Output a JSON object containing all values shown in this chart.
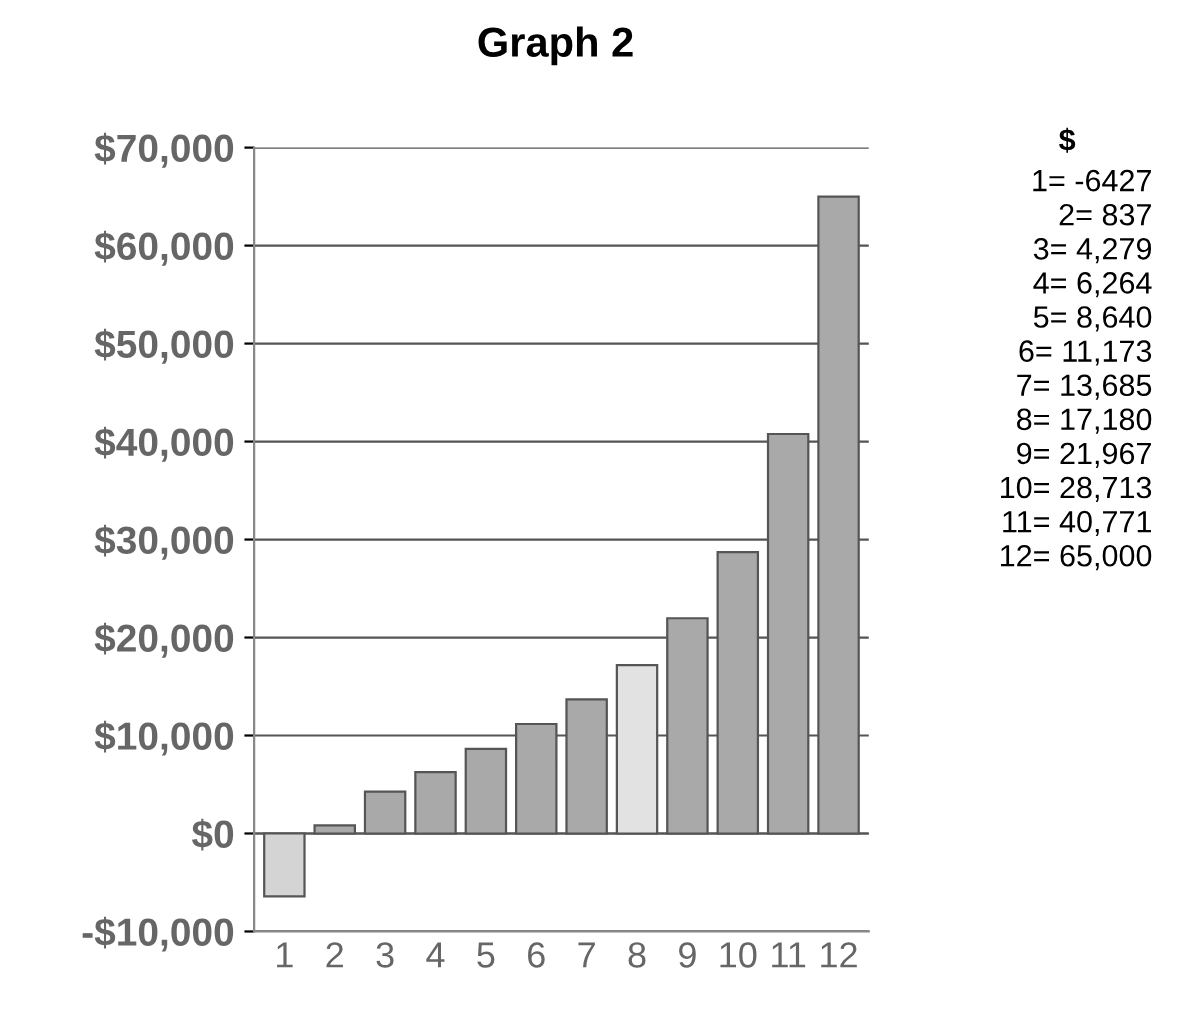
{
  "chart_data": {
    "type": "bar",
    "title": "Graph 2",
    "legend_title": "$",
    "categories": [
      "1",
      "2",
      "3",
      "4",
      "5",
      "6",
      "7",
      "8",
      "9",
      "10",
      "11",
      "12"
    ],
    "values": [
      -6427,
      837,
      4279,
      6264,
      8640,
      11173,
      13685,
      17180,
      21967,
      28713,
      40771,
      65000
    ],
    "annotations": [
      "1= -6427",
      "2= 837",
      "3= 4,279",
      "4= 6,264",
      "5= 8,640",
      "6= 11,173",
      "7= 13,685",
      "8= 17,180",
      "9= 21,967",
      "10= 28,713",
      "11= 40,771",
      "12= 65,000"
    ],
    "colors": [
      "#d4d4d4",
      "#a9a9a9",
      "#a9a9a9",
      "#a9a9a9",
      "#a9a9a9",
      "#a9a9a9",
      "#a9a9a9",
      "#e2e2e2",
      "#a9a9a9",
      "#a9a9a9",
      "#a9a9a9",
      "#a9a9a9"
    ],
    "ylim": [
      -10000,
      70000
    ],
    "yticks": [
      {
        "value": -10000,
        "label": "-$10,000"
      },
      {
        "value": 0,
        "label": "$0"
      },
      {
        "value": 10000,
        "label": "$10,000"
      },
      {
        "value": 20000,
        "label": "$20,000"
      },
      {
        "value": 30000,
        "label": "$30,000"
      },
      {
        "value": 40000,
        "label": "$40,000"
      },
      {
        "value": 50000,
        "label": "$50,000"
      },
      {
        "value": 60000,
        "label": "$60,000"
      },
      {
        "value": 70000,
        "label": "$70,000"
      }
    ],
    "grid": "y"
  }
}
